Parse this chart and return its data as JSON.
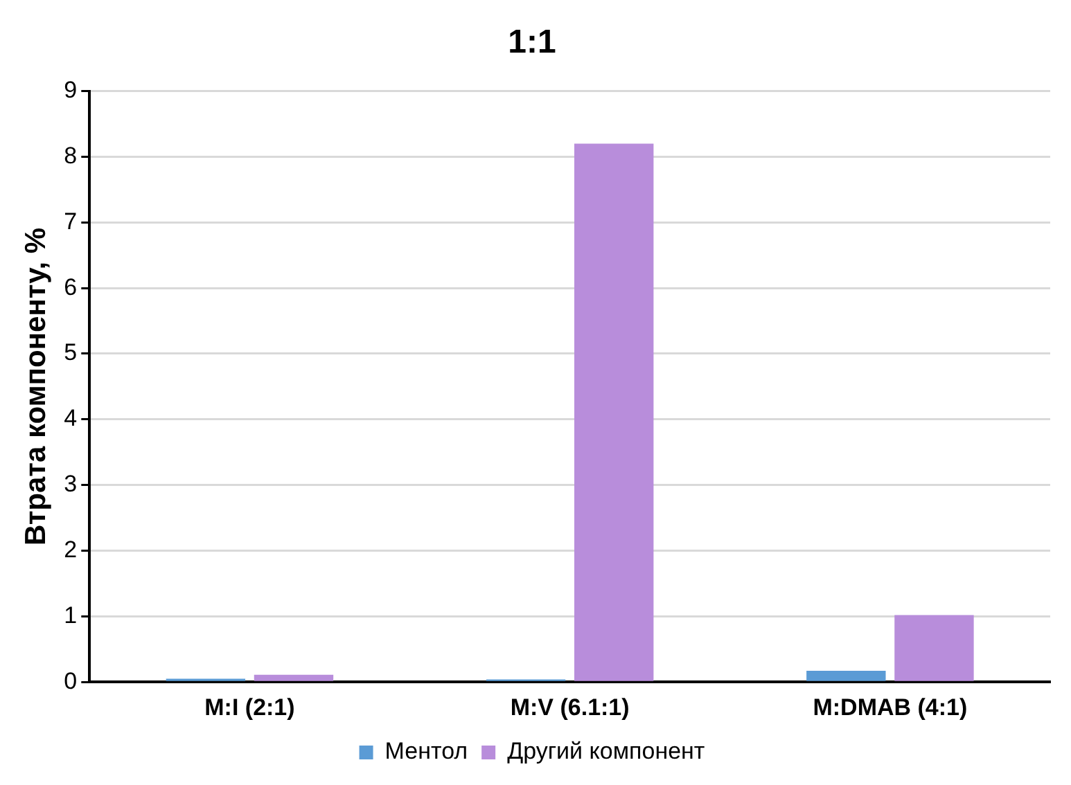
{
  "chart_data": {
    "type": "bar",
    "title": "1:1",
    "ylabel": "Втрата компоненту, %",
    "categories": [
      "M:I (2:1)",
      "M:V (6.1:1)",
      "M:DMAB (4:1)"
    ],
    "series": [
      {
        "name": "Ментол",
        "color": "#5b9bd5",
        "values": [
          0.05,
          0.04,
          0.17
        ]
      },
      {
        "name": "Другий компонент",
        "color": "#b88ddb",
        "values": [
          0.11,
          8.2,
          1.02
        ]
      }
    ],
    "ylim": [
      0,
      9
    ],
    "yticks": [
      0,
      1,
      2,
      3,
      4,
      5,
      6,
      7,
      8,
      9
    ],
    "grid": "y",
    "legend": "bottom"
  }
}
